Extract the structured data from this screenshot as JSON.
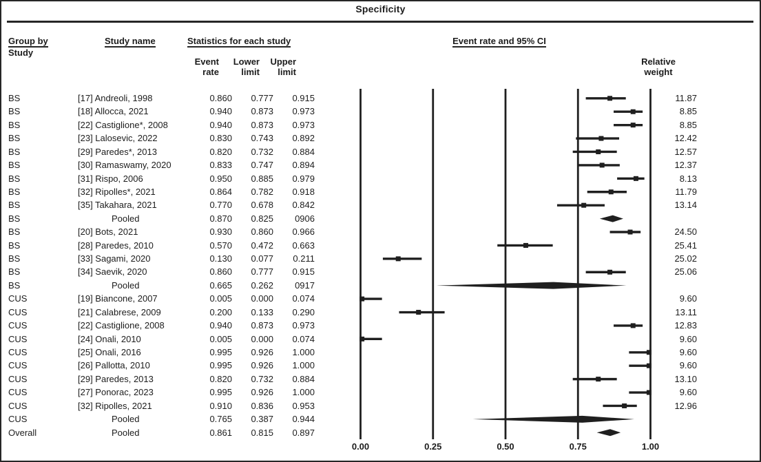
{
  "title": "Specificity",
  "colors": {
    "ink": "#1f1f1f",
    "background": "#ffffff"
  },
  "headers": {
    "group_by_line1": "Group by",
    "group_by_line2": "Study",
    "study_name": "Study name",
    "statistics": "Statistics for each study",
    "event_rate_line1": "Event",
    "event_rate_line2": "rate",
    "lower_line1": "Lower",
    "lower_line2": "limit",
    "upper_line1": "Upper",
    "upper_line2": "limit",
    "ci_header": "Event rate and 95% CI",
    "weight_line1": "Relative",
    "weight_line2": "weight"
  },
  "chart_data": {
    "type": "forest",
    "title": "Specificity",
    "xlabel": "",
    "x_axis": {
      "range": [
        0,
        1
      ],
      "tick_values": [
        0,
        0.25,
        0.5,
        0.75,
        1
      ],
      "tick_labels": [
        "0.00",
        "0.25",
        "0.50",
        "0.75",
        "1.00"
      ]
    },
    "legend": "Event rate and 95% CI",
    "groups": [
      "BS",
      "CUS",
      "Overall"
    ],
    "rows": [
      {
        "group": "BS",
        "label": "[17] Andreoli, 1998",
        "rate": "0.860",
        "lower": "0.777",
        "upper": "0.915",
        "weight": "11.87",
        "kind": "study",
        "plot": [
          0.86,
          0.777,
          0.915
        ]
      },
      {
        "group": "BS",
        "label": "[18] Allocca, 2021",
        "rate": "0.940",
        "lower": "0.873",
        "upper": "0.973",
        "weight": "8.85",
        "kind": "study",
        "plot": [
          0.94,
          0.873,
          0.973
        ]
      },
      {
        "group": "BS",
        "label": "[22] Castiglione*, 2008",
        "rate": "0.940",
        "lower": "0.873",
        "upper": "0.973",
        "weight": "8.85",
        "kind": "study",
        "plot": [
          0.94,
          0.873,
          0.973
        ]
      },
      {
        "group": "BS",
        "label": "[23] Lalosevic, 2022",
        "rate": "0.830",
        "lower": "0.743",
        "upper": "0.892",
        "weight": "12.42",
        "kind": "study",
        "plot": [
          0.83,
          0.743,
          0.892
        ]
      },
      {
        "group": "BS",
        "label": "[29] Paredes*, 2013",
        "rate": "0.820",
        "lower": "0.732",
        "upper": "0.884",
        "weight": "12.57",
        "kind": "study",
        "plot": [
          0.82,
          0.732,
          0.884
        ]
      },
      {
        "group": "BS",
        "label": "[30] Ramaswamy, 2020",
        "rate": "0.833",
        "lower": "0.747",
        "upper": "0.894",
        "weight": "12.37",
        "kind": "study",
        "plot": [
          0.833,
          0.747,
          0.894
        ]
      },
      {
        "group": "BS",
        "label": "[31] Rispo, 2006",
        "rate": "0.950",
        "lower": "0.885",
        "upper": "0.979",
        "weight": "8.13",
        "kind": "study",
        "plot": [
          0.95,
          0.885,
          0.979
        ]
      },
      {
        "group": "BS",
        "label": "[32] Ripolles*, 2021",
        "rate": "0.864",
        "lower": "0.782",
        "upper": "0.918",
        "weight": "11.79",
        "kind": "study",
        "plot": [
          0.864,
          0.782,
          0.918
        ]
      },
      {
        "group": "BS",
        "label": "[35] Takahara, 2021",
        "rate": "0.770",
        "lower": "0.678",
        "upper": "0.842",
        "weight": "13.14",
        "kind": "study",
        "plot": [
          0.77,
          0.678,
          0.842
        ]
      },
      {
        "group": "BS",
        "label": "Pooled",
        "rate": "0.870",
        "lower": "0.825",
        "upper": "0906",
        "weight": "",
        "kind": "pooled",
        "plot": [
          0.87,
          0.825,
          0.906
        ]
      },
      {
        "group": "BS",
        "label": "[20] Bots, 2021",
        "rate": "0.930",
        "lower": "0.860",
        "upper": "0.966",
        "weight": "24.50",
        "kind": "study",
        "plot": [
          0.93,
          0.86,
          0.966
        ]
      },
      {
        "group": "BS",
        "label": "[28] Paredes, 2010",
        "rate": "0.570",
        "lower": "0.472",
        "upper": "0.663",
        "weight": "25.41",
        "kind": "study",
        "plot": [
          0.57,
          0.472,
          0.663
        ]
      },
      {
        "group": "BS",
        "label": "[33] Sagami, 2020",
        "rate": "0.130",
        "lower": "0.077",
        "upper": "0.211",
        "weight": "25.02",
        "kind": "study",
        "plot": [
          0.13,
          0.077,
          0.211
        ]
      },
      {
        "group": "BS",
        "label": "[34] Saevik, 2020",
        "rate": "0.860",
        "lower": "0.777",
        "upper": "0.915",
        "weight": "25.06",
        "kind": "study",
        "plot": [
          0.86,
          0.777,
          0.915
        ]
      },
      {
        "group": "BS",
        "label": "Pooled",
        "rate": "0.665",
        "lower": "0.262",
        "upper": "0917",
        "weight": "",
        "kind": "pooled",
        "plot": [
          0.665,
          0.262,
          0.917
        ]
      },
      {
        "group": "CUS",
        "label": "[19] Biancone, 2007",
        "rate": "0.005",
        "lower": "0.000",
        "upper": "0.074",
        "weight": "9.60",
        "kind": "study",
        "plot": [
          0.005,
          0.0,
          0.074
        ]
      },
      {
        "group": "CUS",
        "label": "[21] Calabrese, 2009",
        "rate": "0.200",
        "lower": "0.133",
        "upper": "0.290",
        "weight": "13.11",
        "kind": "study",
        "plot": [
          0.2,
          0.133,
          0.29
        ]
      },
      {
        "group": "CUS",
        "label": "[22] Castiglione, 2008",
        "rate": "0.940",
        "lower": "0.873",
        "upper": "0.973",
        "weight": "12.83",
        "kind": "study",
        "plot": [
          0.94,
          0.873,
          0.973
        ]
      },
      {
        "group": "CUS",
        "label": "[24] Onali, 2010",
        "rate": "0.005",
        "lower": "0.000",
        "upper": "0.074",
        "weight": "9.60",
        "kind": "study",
        "plot": [
          0.005,
          0.0,
          0.074
        ]
      },
      {
        "group": "CUS",
        "label": "[25] Onali, 2016",
        "rate": "0.995",
        "lower": "0.926",
        "upper": "1.000",
        "weight": "9.60",
        "kind": "study",
        "plot": [
          0.995,
          0.926,
          1.0
        ]
      },
      {
        "group": "CUS",
        "label": "[26] Pallotta, 2010",
        "rate": "0.995",
        "lower": "0.926",
        "upper": "1.000",
        "weight": "9.60",
        "kind": "study",
        "plot": [
          0.995,
          0.926,
          1.0
        ]
      },
      {
        "group": "CUS",
        "label": "[29] Paredes, 2013",
        "rate": "0.820",
        "lower": "0.732",
        "upper": "0.884",
        "weight": "13.10",
        "kind": "study",
        "plot": [
          0.82,
          0.732,
          0.884
        ]
      },
      {
        "group": "CUS",
        "label": "[27] Ponorac, 2023",
        "rate": "0.995",
        "lower": "0.926",
        "upper": "1.000",
        "weight": "9.60",
        "kind": "study",
        "plot": [
          0.995,
          0.926,
          1.0
        ]
      },
      {
        "group": "CUS",
        "label": "[32] Ripolles, 2021",
        "rate": "0.910",
        "lower": "0.836",
        "upper": "0.953",
        "weight": "12.96",
        "kind": "study",
        "plot": [
          0.91,
          0.836,
          0.953
        ]
      },
      {
        "group": "CUS",
        "label": "Pooled",
        "rate": "0.765",
        "lower": "0.387",
        "upper": "0.944",
        "weight": "",
        "kind": "pooled",
        "plot": [
          0.765,
          0.387,
          0.944
        ]
      },
      {
        "group": "Overall",
        "label": "Pooled",
        "rate": "0.861",
        "lower": "0.815",
        "upper": "0.897",
        "weight": "",
        "kind": "pooled",
        "plot": [
          0.861,
          0.815,
          0.897
        ]
      }
    ]
  }
}
